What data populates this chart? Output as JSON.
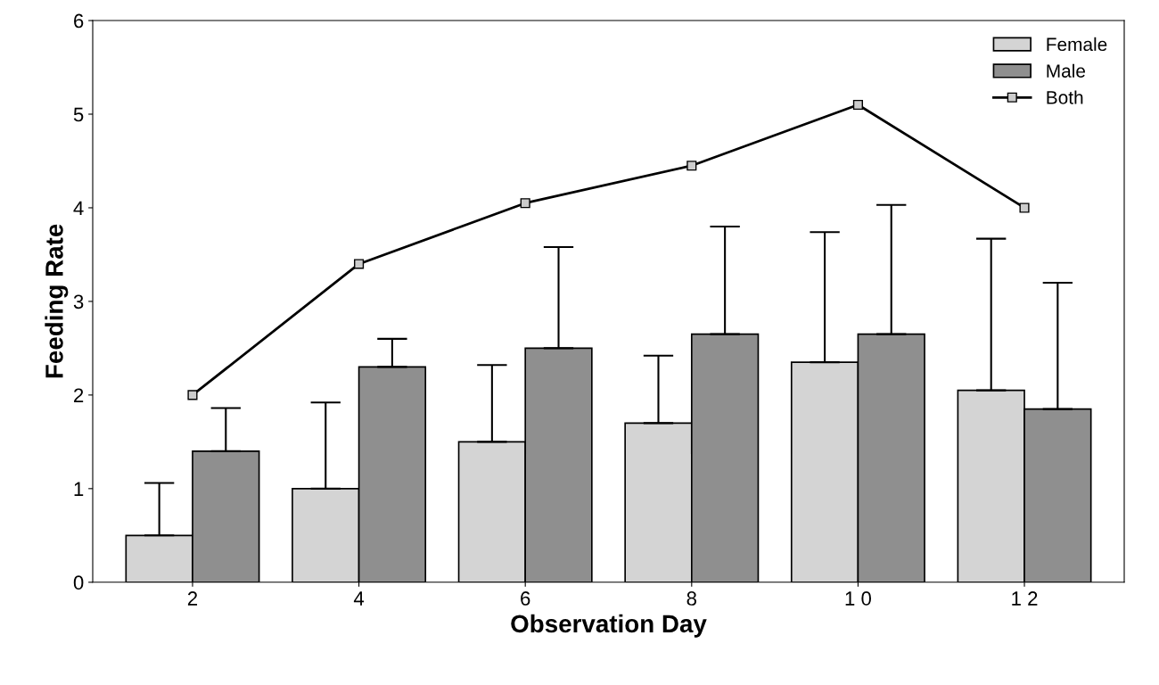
{
  "chart_data": {
    "type": "bar",
    "xlabel": "Observation Day",
    "ylabel": "Feeding Rate",
    "categories": [
      "2",
      "4",
      "6",
      "8",
      "1 0",
      "1 2"
    ],
    "series": [
      {
        "name": "Female",
        "color": "#d4d4d4",
        "values": [
          0.5,
          1.0,
          1.5,
          1.7,
          2.35,
          2.05
        ],
        "errors": [
          [
            0.5,
            1.06
          ],
          [
            1.0,
            1.92
          ],
          [
            1.5,
            2.32
          ],
          [
            1.7,
            2.42
          ],
          [
            2.35,
            3.74
          ],
          [
            2.05,
            3.67
          ]
        ]
      },
      {
        "name": "Male",
        "color": "#8f8f8f",
        "values": [
          1.4,
          2.3,
          2.5,
          2.65,
          2.65,
          1.85
        ],
        "errors": [
          [
            1.4,
            1.86
          ],
          [
            2.3,
            2.6
          ],
          [
            2.5,
            3.58
          ],
          [
            2.65,
            3.8
          ],
          [
            2.65,
            4.03
          ],
          [
            1.85,
            3.2
          ]
        ]
      },
      {
        "name": "Both",
        "type": "line",
        "color": "#000000",
        "values": [
          2.0,
          3.4,
          4.05,
          4.45,
          5.1,
          4.0
        ],
        "marker": "square"
      }
    ],
    "ylim": [
      0,
      6
    ],
    "yticks": [
      0,
      1,
      2,
      3,
      4,
      5,
      6
    ],
    "grid": false,
    "legend": "top right"
  }
}
